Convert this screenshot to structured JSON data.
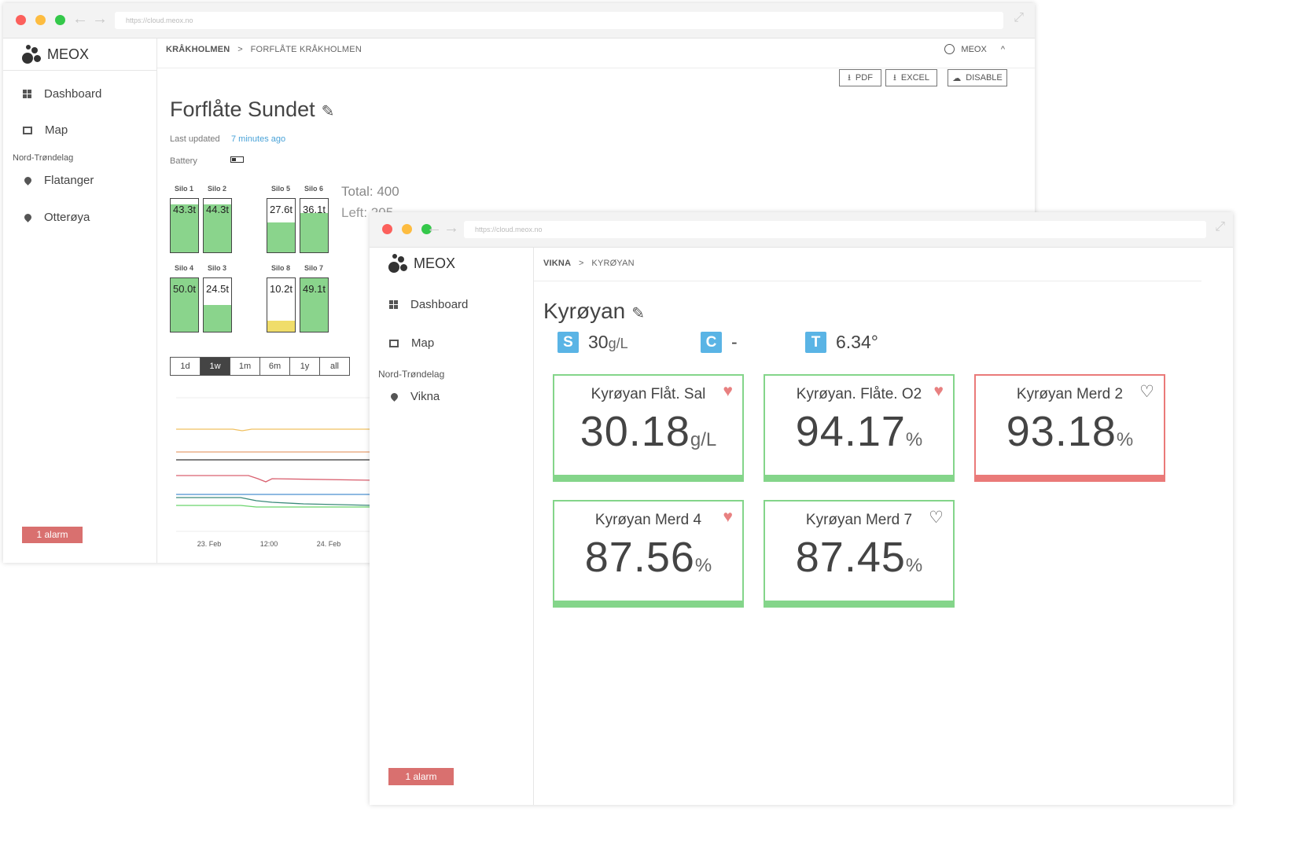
{
  "back": {
    "url": "https://cloud.meox.no",
    "logo_text": "MEOX",
    "nav": [
      {
        "label": "Dashboard",
        "icon": "dashboard-icon"
      },
      {
        "label": "Map",
        "icon": "map-icon"
      }
    ],
    "region": "Nord-Trøndelag",
    "sites": [
      {
        "label": "Flatanger",
        "icon": "location-pin-icon"
      },
      {
        "label": "Otterøya",
        "icon": "location-pin-icon"
      }
    ],
    "alarm": "1 alarm",
    "breadcrumb": {
      "parent": "KRÅKHOLMEN",
      "separator": ">",
      "current": "FORFLÅTE KRÅKHOLMEN"
    },
    "user": "MEOX",
    "buttons": {
      "pdf": "PDF",
      "excel": "EXCEL",
      "disable": "DISABLE"
    },
    "title": "Forflåte Sundet",
    "last_updated_label": "Last updated",
    "last_updated_value": "7 minutes ago",
    "battery_label": "Battery",
    "total_label": "Total: 400",
    "left_label": "Left: 205",
    "silos": [
      {
        "name": "Silo 1",
        "value": "43.3t",
        "level": 0.9,
        "color": "#8ad48c"
      },
      {
        "name": "Silo 2",
        "value": "44.3t",
        "level": 0.9,
        "color": "#8ad48c"
      },
      {
        "name": "Silo 5",
        "value": "27.6t",
        "level": 0.56,
        "color": "#8ad48c"
      },
      {
        "name": "Silo 6",
        "value": "36.1t",
        "level": 0.74,
        "color": "#8ad48c"
      },
      {
        "name": "Silo 4",
        "value": "50.0t",
        "level": 1.0,
        "color": "#8ad48c"
      },
      {
        "name": "Silo 3",
        "value": "24.5t",
        "level": 0.5,
        "color": "#8ad48c"
      },
      {
        "name": "Silo 8",
        "value": "10.2t",
        "level": 0.2,
        "color": "#f0dd6a"
      },
      {
        "name": "Silo 7",
        "value": "49.1t",
        "level": 1.0,
        "color": "#8ad48c"
      }
    ],
    "ranges": [
      "1d",
      "1w",
      "1m",
      "6m",
      "1y",
      "all"
    ],
    "active_range": "1w",
    "chart_data": {
      "type": "line",
      "x_ticks": [
        "23. Feb",
        "12:00",
        "24. Feb"
      ],
      "colors": [
        "#f0c060",
        "#e8a070",
        "#333333",
        "#d9606f",
        "#4a8fd0",
        "#3a8a7a",
        "#6ad46c"
      ]
    }
  },
  "front": {
    "url": "https://cloud.meox.no",
    "logo_text": "MEOX",
    "nav": [
      {
        "label": "Dashboard",
        "icon": "dashboard-icon"
      },
      {
        "label": "Map",
        "icon": "map-icon"
      }
    ],
    "region": "Nord-Trøndelag",
    "sites": [
      {
        "label": "Vikna",
        "icon": "location-pin-icon"
      }
    ],
    "alarm": "1 alarm",
    "breadcrumb": {
      "parent": "VIKNA",
      "separator": ">",
      "current": "KYRØYAN"
    },
    "title": "Kyrøyan",
    "sensors": [
      {
        "badge": "S",
        "value": "30",
        "unit": "g/L"
      },
      {
        "badge": "C",
        "value": "-",
        "unit": ""
      },
      {
        "badge": "T",
        "value": "6.34°",
        "unit": ""
      }
    ],
    "tiles": [
      {
        "name": "Kyrøyan Flåt. Sal",
        "value": "30.18",
        "unit": "g/L",
        "favorite": true,
        "status": "ok"
      },
      {
        "name": "Kyrøyan. Flåte. O2",
        "value": "94.17",
        "unit": "%",
        "favorite": true,
        "status": "ok"
      },
      {
        "name": "Kyrøyan Merd 2",
        "value": "93.18",
        "unit": "%",
        "favorite": false,
        "status": "alert"
      },
      {
        "name": "Kyrøyan Merd 4",
        "value": "87.56",
        "unit": "%",
        "favorite": true,
        "status": "ok"
      },
      {
        "name": "Kyrøyan Merd 7",
        "value": "87.45",
        "unit": "%",
        "favorite": false,
        "status": "ok"
      }
    ]
  }
}
